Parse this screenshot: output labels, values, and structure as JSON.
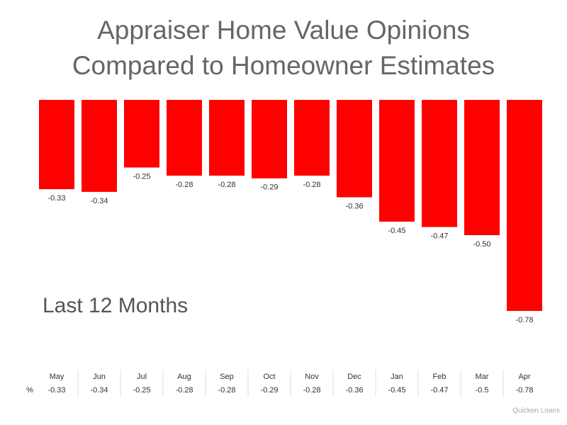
{
  "chart_data": {
    "type": "bar",
    "title": "Appraiser Home Value Opinions\nCompared to Homeowner Estimates",
    "annotation": "Last 12 Months",
    "categories": [
      "May",
      "Jun",
      "Jul",
      "Aug",
      "Sep",
      "Oct",
      "Nov",
      "Dec",
      "Jan",
      "Feb",
      "Mar",
      "Apr"
    ],
    "values": [
      -0.33,
      -0.34,
      -0.25,
      -0.28,
      -0.28,
      -0.29,
      -0.28,
      -0.36,
      -0.45,
      -0.47,
      -0.5,
      -0.78
    ],
    "value_labels": [
      "-0.33",
      "-0.34",
      "-0.25",
      "-0.28",
      "-0.28",
      "-0.29",
      "-0.28",
      "-0.36",
      "-0.45",
      "-0.47",
      "-0.50",
      "-0.78"
    ],
    "color": "#ff0000",
    "table_row_label": "%",
    "source": "Quicken Loans"
  }
}
